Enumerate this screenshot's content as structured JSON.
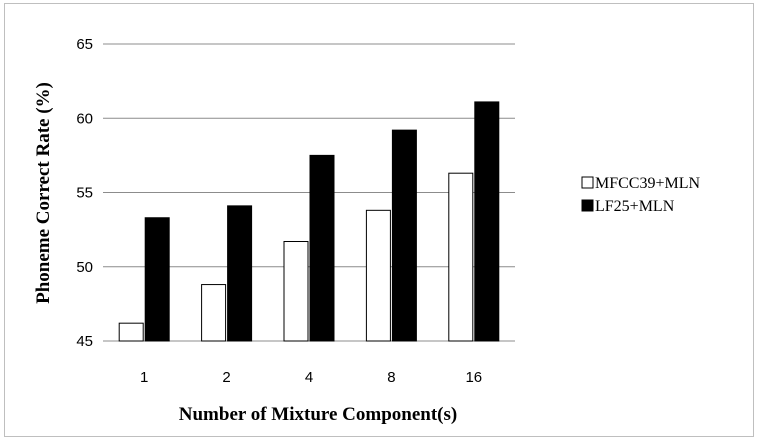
{
  "chart_data": {
    "type": "bar",
    "title": "",
    "xlabel": "Number of Mixture Component(s)",
    "ylabel": "Phoneme Correct Rate (%)",
    "categories": [
      "1",
      "2",
      "4",
      "8",
      "16"
    ],
    "ylim": [
      45,
      65
    ],
    "yticks": [
      "45",
      "50",
      "55",
      "60",
      "65"
    ],
    "grid": "horizontal",
    "legend_position": "right",
    "series": [
      {
        "name": "MFCC39+MLN",
        "color": "#ffffff",
        "values": [
          46.2,
          48.8,
          51.7,
          53.8,
          56.3
        ]
      },
      {
        "name": "LF25+MLN",
        "color": "#000000",
        "values": [
          53.3,
          54.1,
          57.5,
          59.2,
          61.1
        ]
      }
    ]
  }
}
